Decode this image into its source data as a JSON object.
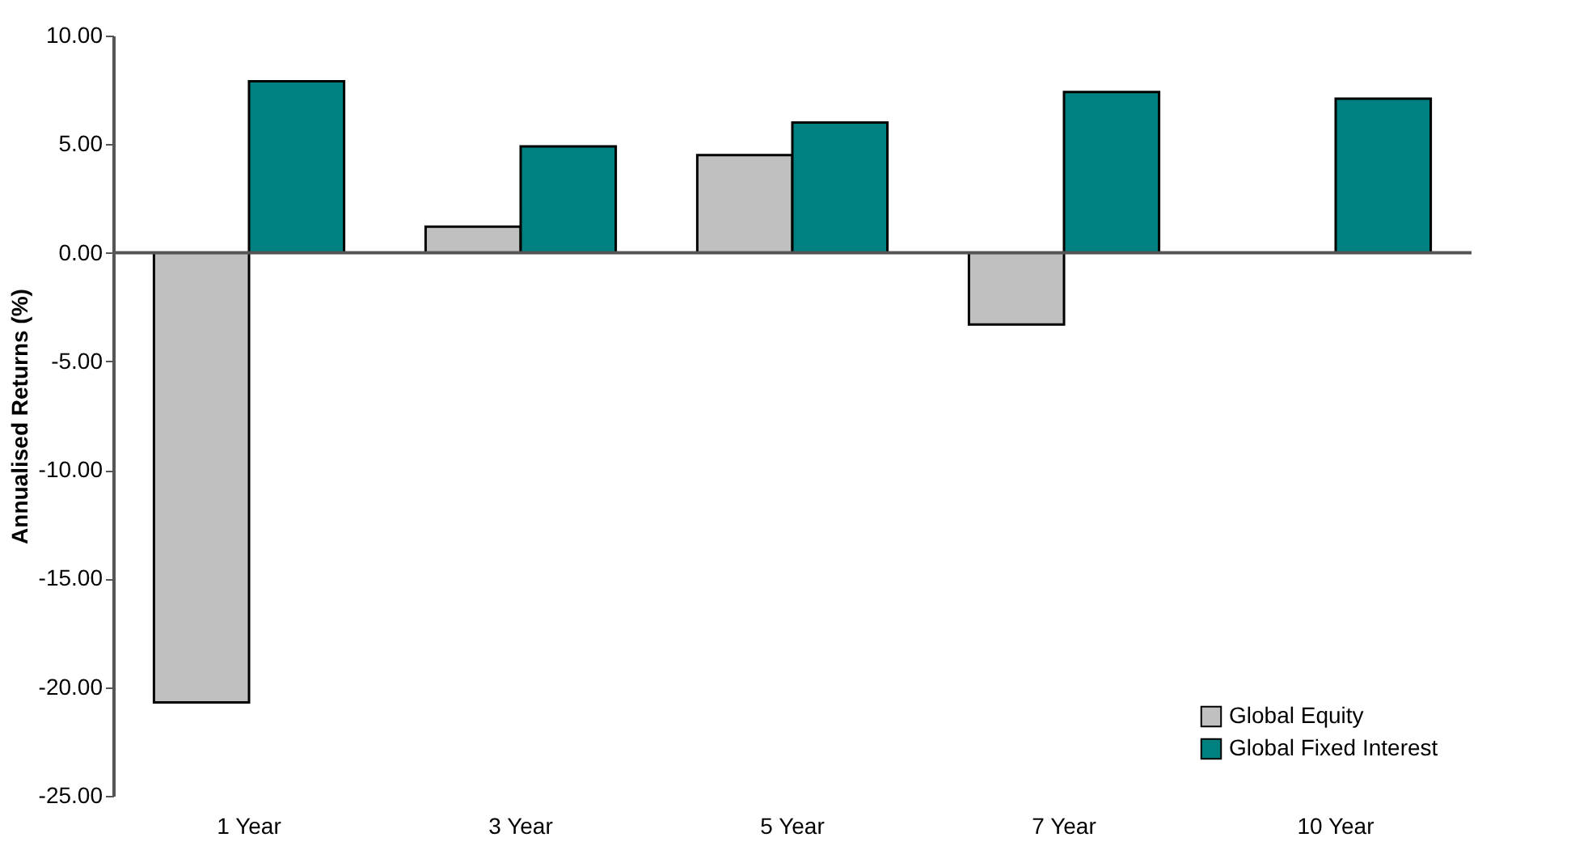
{
  "chart_data": {
    "type": "bar",
    "ylabel": "Annualised Returns (%)",
    "categories": [
      "1 Year",
      "3 Year",
      "5 Year",
      "7 Year",
      "10 Year"
    ],
    "series": [
      {
        "name": "Global Equity",
        "color": "#c0c0c0",
        "values": [
          -20.7,
          1.2,
          4.5,
          -3.3,
          null
        ]
      },
      {
        "name": "Global Fixed Interest",
        "color": "#008080",
        "values": [
          7.9,
          4.9,
          6.0,
          7.4,
          7.1
        ]
      }
    ],
    "ylim": [
      -25,
      10
    ],
    "yticks": [
      {
        "value": 10,
        "label": "10.00"
      },
      {
        "value": 5,
        "label": "5.00"
      },
      {
        "value": 0,
        "label": "0.00"
      },
      {
        "value": -5,
        "label": "-5.00"
      },
      {
        "value": -10,
        "label": "-10.00"
      },
      {
        "value": -15,
        "label": "-15.00"
      },
      {
        "value": -20,
        "label": "-20.00"
      },
      {
        "value": -25,
        "label": "-25.00"
      }
    ],
    "ref_lines": [
      {
        "axis": "y",
        "value": 0,
        "color": "#555555"
      }
    ],
    "legend": "bottom right"
  }
}
